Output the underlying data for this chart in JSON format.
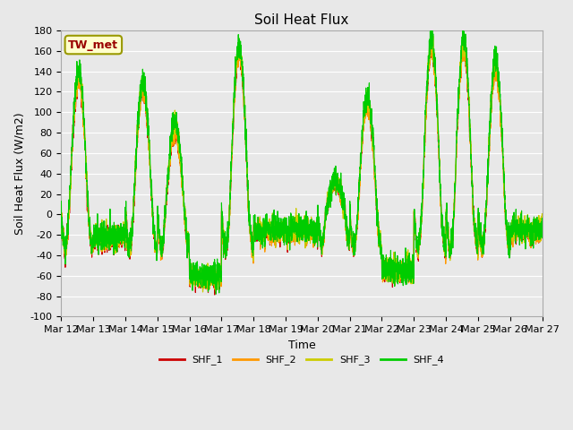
{
  "title": "Soil Heat Flux",
  "ylabel": "Soil Heat Flux (W/m2)",
  "xlabel": "Time",
  "ylim": [
    -100,
    180
  ],
  "yticks": [
    -100,
    -80,
    -60,
    -40,
    -20,
    0,
    20,
    40,
    60,
    80,
    100,
    120,
    140,
    160,
    180
  ],
  "x_labels": [
    "Mar 12",
    "Mar 13",
    "Mar 14",
    "Mar 15",
    "Mar 16",
    "Mar 17",
    "Mar 18",
    "Mar 19",
    "Mar 20",
    "Mar 21",
    "Mar 22",
    "Mar 23",
    "Mar 24",
    "Mar 25",
    "Mar 26",
    "Mar 27"
  ],
  "legend_label": "TW_met",
  "legend_box_color": "#ffffcc",
  "legend_box_edge": "#999900",
  "legend_text_color": "#990000",
  "series_names": [
    "SHF_1",
    "SHF_2",
    "SHF_3",
    "SHF_4"
  ],
  "series_colors": [
    "#cc0000",
    "#ff9900",
    "#cccc00",
    "#00cc00"
  ],
  "plot_bg_color": "#e8e8e8",
  "grid_color": "#ffffff",
  "title_fontsize": 11,
  "axis_fontsize": 9,
  "tick_fontsize": 8,
  "day_peaks": [
    130,
    0,
    120,
    80,
    0,
    155,
    0,
    0,
    30,
    105,
    0,
    160,
    160,
    140,
    0
  ],
  "day_troughs": [
    -35,
    -35,
    -35,
    -35,
    -90,
    -35,
    -25,
    -25,
    -30,
    -35,
    -80,
    -35,
    -35,
    -35,
    -25
  ]
}
